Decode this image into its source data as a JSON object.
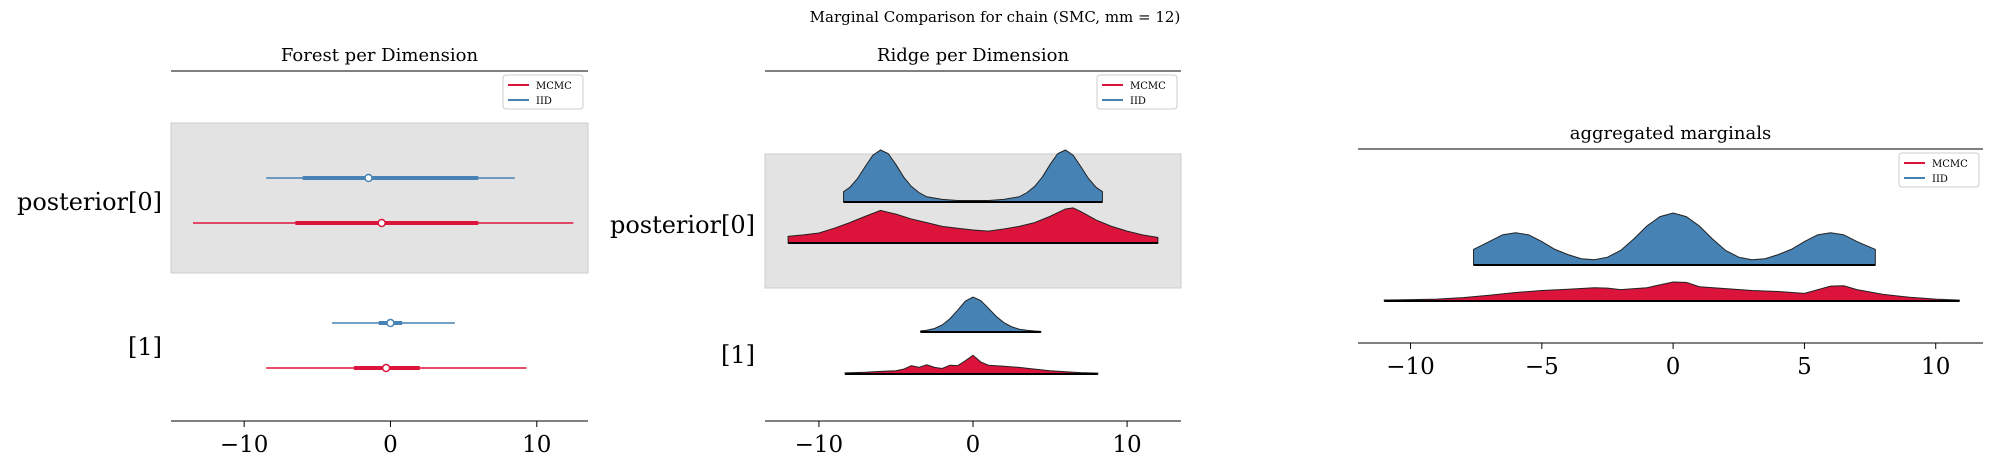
{
  "figure": {
    "suptitle": "Marginal Comparison for chain (SMC, mm = 12)"
  },
  "colors": {
    "mcmc": "#dc143c",
    "iid": "#4682b4",
    "band": "#e3e3e3"
  },
  "legend": {
    "items": [
      "MCMC",
      "IID"
    ],
    "placement": "upper right"
  },
  "chart_data": [
    {
      "type": "forest",
      "title": "Forest per Dimension",
      "xlim": [
        -15,
        13.5
      ],
      "xticks": [
        -10,
        0,
        10
      ],
      "xtick_labels": [
        "−10",
        "0",
        "10"
      ],
      "dimension_labels": [
        "posterior[0]",
        "[1]"
      ],
      "rows": [
        {
          "dimension": "posterior[0]",
          "series": "IID",
          "median": -1.5,
          "hdi_50": [
            -6.0,
            6.0
          ],
          "hdi_94": [
            -8.5,
            8.5
          ]
        },
        {
          "dimension": "posterior[0]",
          "series": "MCMC",
          "median": -0.6,
          "hdi_50": [
            -6.5,
            6.0
          ],
          "hdi_94": [
            -13.5,
            12.5
          ]
        },
        {
          "dimension": "[1]",
          "series": "IID",
          "median": 0.0,
          "hdi_50": [
            -0.8,
            0.8
          ],
          "hdi_94": [
            -4.0,
            4.4
          ]
        },
        {
          "dimension": "[1]",
          "series": "MCMC",
          "median": -0.3,
          "hdi_50": [
            -2.5,
            2.0
          ],
          "hdi_94": [
            -8.5,
            9.3
          ]
        }
      ]
    },
    {
      "type": "ridge",
      "title": "Ridge per Dimension",
      "xlim": [
        -13.5,
        13.5
      ],
      "xticks": [
        -10,
        0,
        10
      ],
      "xtick_labels": [
        "−10",
        "0",
        "10"
      ],
      "dimension_labels": [
        "posterior[0]",
        "[1]"
      ],
      "ridges": [
        {
          "dimension": "posterior[0]",
          "series": "IID",
          "x": [
            -8.4,
            -8,
            -7.5,
            -7,
            -6.5,
            -6,
            -5.5,
            -5,
            -4.5,
            -4,
            -3.5,
            -3,
            -2,
            -1,
            0,
            1,
            2,
            3,
            3.5,
            4,
            4.5,
            5,
            5.5,
            6,
            6.5,
            7,
            7.5,
            8,
            8.4
          ],
          "density": [
            0.2,
            0.28,
            0.45,
            0.68,
            0.9,
            1.0,
            0.93,
            0.72,
            0.48,
            0.3,
            0.18,
            0.1,
            0.05,
            0.03,
            0.03,
            0.03,
            0.05,
            0.1,
            0.18,
            0.3,
            0.48,
            0.72,
            0.93,
            1.0,
            0.9,
            0.68,
            0.45,
            0.28,
            0.2
          ]
        },
        {
          "dimension": "posterior[0]",
          "series": "MCMC",
          "x": [
            -12,
            -11,
            -10,
            -9,
            -8,
            -7,
            -6,
            -5,
            -4,
            -3,
            -2,
            -1,
            0,
            1,
            2,
            3,
            4,
            5,
            6,
            6.5,
            7,
            8,
            9,
            10,
            11,
            12
          ],
          "density": [
            0.18,
            0.22,
            0.27,
            0.4,
            0.55,
            0.72,
            0.88,
            0.78,
            0.65,
            0.55,
            0.45,
            0.4,
            0.35,
            0.32,
            0.38,
            0.45,
            0.55,
            0.72,
            0.92,
            0.95,
            0.85,
            0.62,
            0.45,
            0.32,
            0.22,
            0.15
          ]
        },
        {
          "dimension": "[1]",
          "series": "IID",
          "x": [
            -3.4,
            -3,
            -2.5,
            -2,
            -1.5,
            -1,
            -0.5,
            0,
            0.5,
            1,
            1.5,
            2,
            2.5,
            3,
            3.5,
            4,
            4.4
          ],
          "density": [
            0.03,
            0.05,
            0.1,
            0.2,
            0.38,
            0.62,
            0.88,
            1.0,
            0.9,
            0.68,
            0.45,
            0.27,
            0.15,
            0.08,
            0.05,
            0.03,
            0.02
          ]
        },
        {
          "dimension": "[1]",
          "series": "MCMC",
          "x": [
            -8.3,
            -7,
            -6,
            -5,
            -4.5,
            -4,
            -3.5,
            -3,
            -2.5,
            -2,
            -1.5,
            -1,
            -0.5,
            0,
            0.5,
            1,
            2,
            3,
            4,
            5,
            6,
            7,
            8.1
          ],
          "density": [
            0.05,
            0.08,
            0.12,
            0.15,
            0.22,
            0.38,
            0.3,
            0.42,
            0.3,
            0.25,
            0.4,
            0.38,
            0.6,
            0.85,
            0.55,
            0.4,
            0.35,
            0.3,
            0.22,
            0.15,
            0.1,
            0.06,
            0.04
          ]
        }
      ]
    },
    {
      "type": "ridge",
      "title": "aggregated marginals",
      "xlim": [
        -12,
        11.8
      ],
      "xticks": [
        -10,
        -5,
        0,
        5,
        10
      ],
      "xtick_labels": [
        "−10",
        "−5",
        "0",
        "5",
        "10"
      ],
      "ridges": [
        {
          "series": "IID",
          "x": [
            -7.6,
            -7,
            -6.5,
            -6,
            -5.5,
            -5,
            -4.5,
            -4,
            -3.5,
            -3,
            -2.5,
            -2,
            -1.5,
            -1,
            -0.5,
            0,
            0.5,
            1,
            1.5,
            2,
            2.5,
            3,
            3.5,
            4,
            4.5,
            5,
            5.5,
            6,
            6.5,
            7,
            7.7
          ],
          "density": [
            0.3,
            0.45,
            0.58,
            0.62,
            0.58,
            0.45,
            0.3,
            0.2,
            0.12,
            0.1,
            0.15,
            0.28,
            0.5,
            0.75,
            0.93,
            1.0,
            0.93,
            0.75,
            0.5,
            0.28,
            0.15,
            0.1,
            0.12,
            0.2,
            0.3,
            0.45,
            0.58,
            0.62,
            0.58,
            0.45,
            0.3
          ]
        },
        {
          "series": "MCMC",
          "x": [
            -11,
            -10,
            -9,
            -8,
            -7,
            -6,
            -5,
            -4,
            -3,
            -2.5,
            -2,
            -1,
            0,
            0.5,
            1,
            2,
            3,
            4,
            5,
            6,
            6.5,
            7,
            8,
            9,
            10,
            10.9
          ],
          "density": [
            0.05,
            0.07,
            0.1,
            0.18,
            0.3,
            0.45,
            0.55,
            0.62,
            0.7,
            0.68,
            0.6,
            0.7,
            1.0,
            0.98,
            0.75,
            0.65,
            0.55,
            0.5,
            0.4,
            0.78,
            0.8,
            0.6,
            0.35,
            0.2,
            0.1,
            0.05
          ]
        }
      ]
    }
  ]
}
